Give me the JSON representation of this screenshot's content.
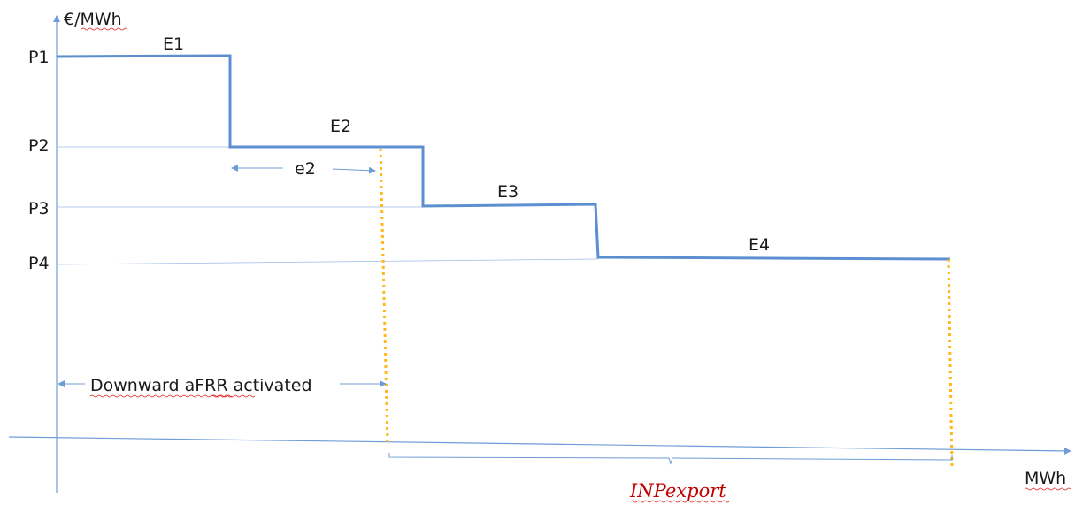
{
  "axis": {
    "y_label": "€/MWh",
    "x_label": "MWh"
  },
  "prices": {
    "p1": "P1",
    "p2": "P2",
    "p3": "P3",
    "p4": "P4"
  },
  "blocks": {
    "e1": "E1",
    "e2": "E2",
    "e3": "E3",
    "e4": "E4"
  },
  "partial_label": "e2",
  "activated_label": "Downward aFRR activated",
  "export_label": "INPexport",
  "colors": {
    "step_line": "#5b8fd0",
    "axis_line": "#6e9cd6",
    "cut_line": "#ffb71b",
    "export_text": "#c00000"
  }
}
